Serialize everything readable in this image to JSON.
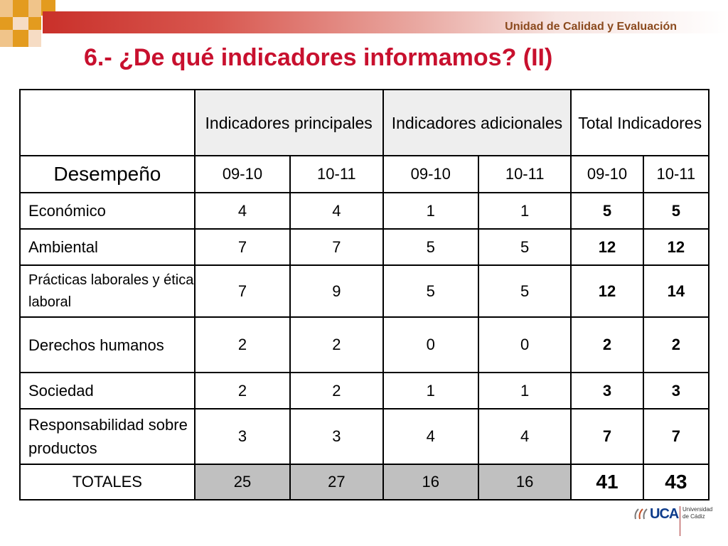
{
  "header": {
    "org": "Unidad de Calidad y Evaluación",
    "title": "6.- ¿De qué indicadores informamos? (II)"
  },
  "table": {
    "groups": [
      "Indicadores principales",
      "Indicadores adicionales",
      "Total Indicadores"
    ],
    "row_label_header": "Desempeño",
    "periods": [
      "09-10",
      "10-11",
      "09-10",
      "10-11",
      "09-10",
      "10-11"
    ],
    "rows": [
      {
        "label": "Económico",
        "values": [
          "4",
          "4",
          "1",
          "1",
          "5",
          "5"
        ]
      },
      {
        "label": "Ambiental",
        "values": [
          "7",
          "7",
          "5",
          "5",
          "12",
          "12"
        ]
      },
      {
        "label": "Prácticas  laborales y ética laboral",
        "values": [
          "7",
          "9",
          "5",
          "5",
          "12",
          "14"
        ]
      },
      {
        "label": "Derechos humanos",
        "values": [
          "2",
          "2",
          "0",
          "0",
          "2",
          "2"
        ]
      },
      {
        "label": "Sociedad",
        "values": [
          "2",
          "2",
          "1",
          "1",
          "3",
          "3"
        ]
      },
      {
        "label": "Responsabilidad sobre productos",
        "values": [
          "3",
          "3",
          "4",
          "4",
          "7",
          "7"
        ]
      }
    ],
    "totals": {
      "label": "TOTALES",
      "values": [
        "25",
        "27",
        "16",
        "16",
        "41",
        "43"
      ]
    }
  },
  "logo": {
    "brand": "UCA",
    "university": "Universidad de Cádiz"
  },
  "colors": {
    "title": "#c8102e",
    "org": "#8b4a1e",
    "accent_orange": "#e39b1f",
    "bar_red": "#c9302a"
  }
}
